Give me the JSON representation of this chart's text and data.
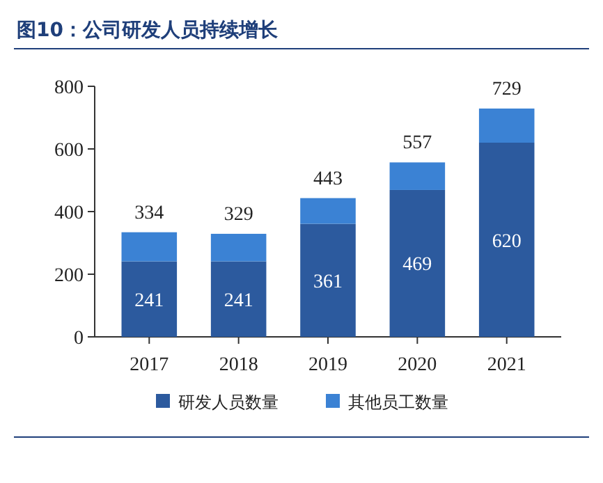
{
  "chart_data": {
    "type": "bar",
    "title": "图10：公司研发人员持续增长",
    "categories": [
      "2017",
      "2018",
      "2019",
      "2020",
      "2021"
    ],
    "stacked": true,
    "ylim": [
      0,
      800
    ],
    "yticks": [
      0,
      200,
      400,
      600,
      800
    ],
    "legend": "bottom",
    "series": [
      {
        "name": "研发人员数量",
        "color": "#2c5a9e",
        "values": [
          241,
          241,
          361,
          469,
          620
        ],
        "value_labels": [
          "241",
          "241",
          "361",
          "469",
          "620"
        ]
      },
      {
        "name": "其他员工数量",
        "color": "#3b82d4",
        "values": [
          93,
          88,
          82,
          88,
          109
        ]
      }
    ],
    "totals": [
      "334",
      "329",
      "443",
      "557",
      "729"
    ]
  }
}
